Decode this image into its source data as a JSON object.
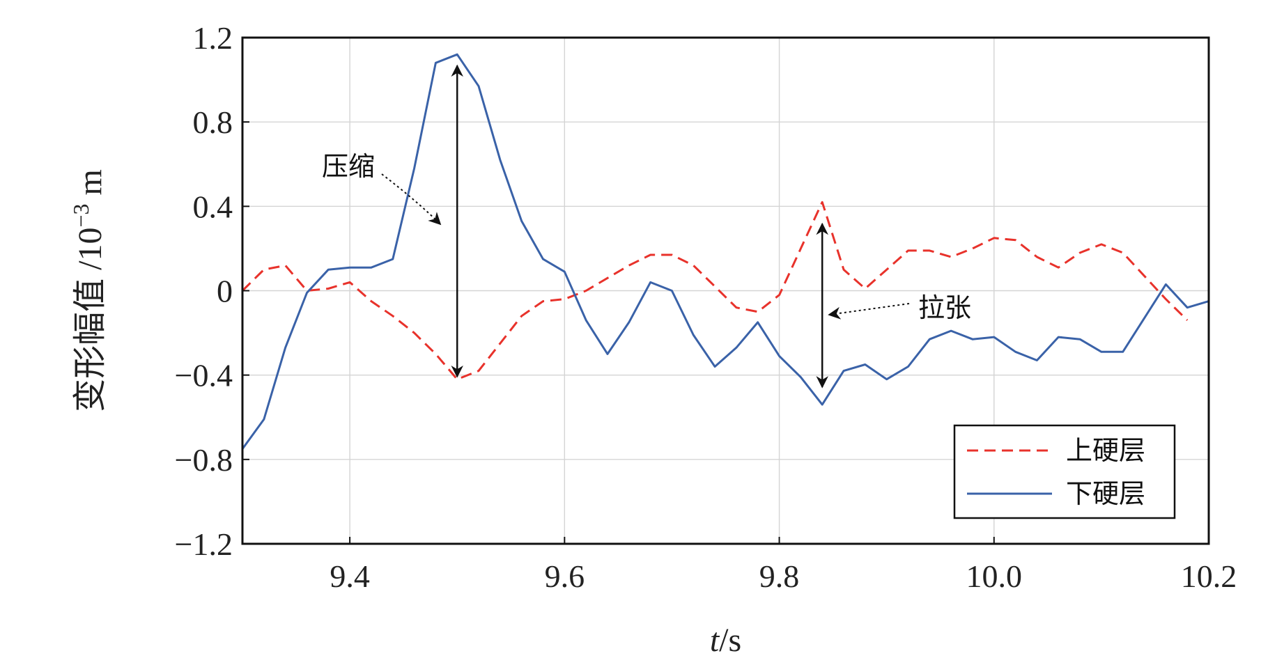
{
  "chart_data": {
    "type": "line",
    "xlabel_italic": "t",
    "xlabel_unit": "/s",
    "ylabel_text": "变形幅值 /10",
    "ylabel_exp": "−3",
    "ylabel_unit": " m",
    "xlim": [
      9.3,
      10.2
    ],
    "ylim": [
      -1.2,
      1.2
    ],
    "x_ticks": [
      9.4,
      9.6,
      9.8,
      10.0,
      10.2
    ],
    "x_tick_labels": [
      "9.4",
      "9.6",
      "9.8",
      "10.0",
      "10.2"
    ],
    "y_ticks": [
      1.2,
      0.8,
      0.4,
      0,
      -0.4,
      -0.8,
      -1.2
    ],
    "y_tick_labels": [
      "1.2",
      "0.8",
      "0.4",
      "0",
      "−0.4",
      "−0.8",
      "−1.2"
    ],
    "grid": true,
    "legend_position": "bottom-right",
    "series": [
      {
        "name": "上硬层",
        "color": "#e8322b",
        "dash": "dashed",
        "points": [
          [
            9.3,
            0.0
          ],
          [
            9.32,
            0.1
          ],
          [
            9.34,
            0.12
          ],
          [
            9.36,
            0.0
          ],
          [
            9.38,
            0.01
          ],
          [
            9.4,
            0.04
          ],
          [
            9.42,
            -0.05
          ],
          [
            9.44,
            -0.12
          ],
          [
            9.46,
            -0.2
          ],
          [
            9.48,
            -0.3
          ],
          [
            9.5,
            -0.42
          ],
          [
            9.52,
            -0.38
          ],
          [
            9.54,
            -0.25
          ],
          [
            9.56,
            -0.12
          ],
          [
            9.58,
            -0.05
          ],
          [
            9.6,
            -0.04
          ],
          [
            9.62,
            0.0
          ],
          [
            9.64,
            0.06
          ],
          [
            9.66,
            0.12
          ],
          [
            9.68,
            0.17
          ],
          [
            9.7,
            0.17
          ],
          [
            9.72,
            0.12
          ],
          [
            9.74,
            0.02
          ],
          [
            9.76,
            -0.08
          ],
          [
            9.78,
            -0.1
          ],
          [
            9.8,
            -0.02
          ],
          [
            9.82,
            0.2
          ],
          [
            9.84,
            0.42
          ],
          [
            9.86,
            0.1
          ],
          [
            9.88,
            0.01
          ],
          [
            9.9,
            0.1
          ],
          [
            9.92,
            0.19
          ],
          [
            9.94,
            0.19
          ],
          [
            9.96,
            0.16
          ],
          [
            9.98,
            0.2
          ],
          [
            10.0,
            0.25
          ],
          [
            10.02,
            0.24
          ],
          [
            10.04,
            0.16
          ],
          [
            10.06,
            0.11
          ],
          [
            10.08,
            0.18
          ],
          [
            10.1,
            0.22
          ],
          [
            10.12,
            0.18
          ],
          [
            10.14,
            0.07
          ],
          [
            10.16,
            -0.04
          ],
          [
            10.18,
            -0.14
          ]
        ]
      },
      {
        "name": "下硬层",
        "color": "#3a62a8",
        "dash": "solid",
        "points": [
          [
            9.3,
            -0.75
          ],
          [
            9.32,
            -0.61
          ],
          [
            9.34,
            -0.27
          ],
          [
            9.36,
            -0.01
          ],
          [
            9.38,
            0.1
          ],
          [
            9.4,
            0.11
          ],
          [
            9.42,
            0.11
          ],
          [
            9.44,
            0.15
          ],
          [
            9.46,
            0.58
          ],
          [
            9.48,
            1.08
          ],
          [
            9.5,
            1.12
          ],
          [
            9.52,
            0.97
          ],
          [
            9.54,
            0.62
          ],
          [
            9.56,
            0.33
          ],
          [
            9.58,
            0.15
          ],
          [
            9.6,
            0.09
          ],
          [
            9.62,
            -0.14
          ],
          [
            9.64,
            -0.3
          ],
          [
            9.66,
            -0.15
          ],
          [
            9.68,
            0.04
          ],
          [
            9.7,
            0.0
          ],
          [
            9.72,
            -0.21
          ],
          [
            9.74,
            -0.36
          ],
          [
            9.76,
            -0.27
          ],
          [
            9.78,
            -0.15
          ],
          [
            9.8,
            -0.31
          ],
          [
            9.82,
            -0.41
          ],
          [
            9.84,
            -0.54
          ],
          [
            9.86,
            -0.38
          ],
          [
            9.88,
            -0.35
          ],
          [
            9.9,
            -0.42
          ],
          [
            9.92,
            -0.36
          ],
          [
            9.94,
            -0.23
          ],
          [
            9.96,
            -0.19
          ],
          [
            9.98,
            -0.23
          ],
          [
            10.0,
            -0.22
          ],
          [
            10.02,
            -0.29
          ],
          [
            10.04,
            -0.33
          ],
          [
            10.06,
            -0.22
          ],
          [
            10.08,
            -0.23
          ],
          [
            10.1,
            -0.29
          ],
          [
            10.12,
            -0.29
          ],
          [
            10.14,
            -0.13
          ],
          [
            10.16,
            0.03
          ],
          [
            10.18,
            -0.08
          ],
          [
            10.2,
            -0.05
          ]
        ]
      }
    ],
    "annotations": [
      {
        "text": "压缩",
        "arrow_x": 9.5,
        "arrow_y_from": -0.42,
        "arrow_y_to": 1.08
      },
      {
        "text": "拉张",
        "arrow_x": 9.84,
        "arrow_y_from": -0.47,
        "arrow_y_to": 0.33
      }
    ]
  }
}
